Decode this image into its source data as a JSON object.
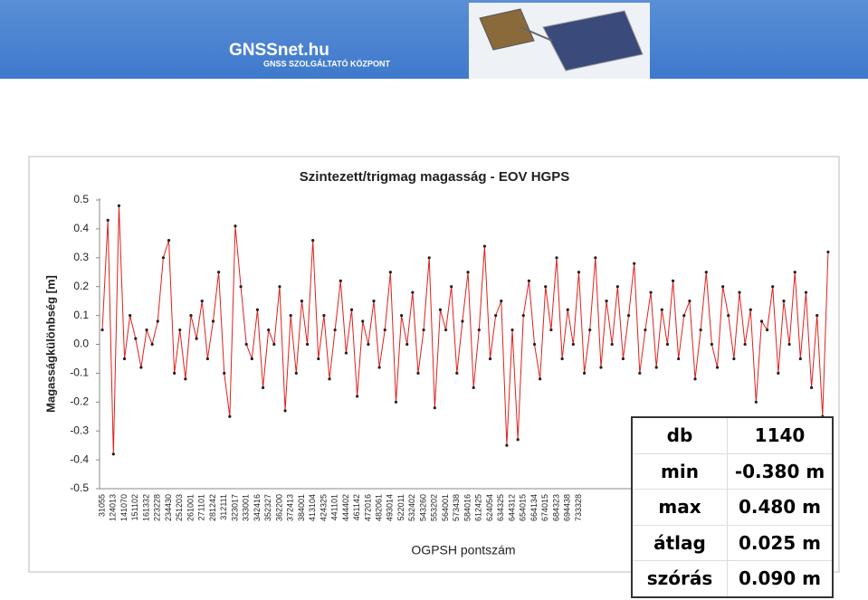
{
  "header": {
    "brand": "GNSSnet.hu",
    "subtitle": "GNSS SZOLGÁLTATÓ KÖZPONT"
  },
  "chart_data": {
    "type": "line",
    "title": "Szintezett/trigmag magasság - EOV HGPS",
    "x_label": "OGPSH pontszám",
    "y_label": "Magasságkülönbség [m]",
    "ylim": [
      -0.5,
      0.5
    ],
    "yticks": [
      -0.5,
      -0.4,
      -0.3,
      -0.2,
      -0.1,
      {
        "value": 0,
        "label": "0.0"
      },
      0.1,
      0.2,
      0.3,
      0.4,
      0.5
    ],
    "grid": false,
    "categories": [
      "31055",
      null,
      "124013",
      null,
      "141070",
      null,
      "151102",
      null,
      "161332",
      null,
      "223228",
      null,
      "234430",
      null,
      "251203",
      null,
      "261001",
      null,
      "271101",
      null,
      "281242",
      null,
      "312111",
      null,
      "323017",
      null,
      "333001",
      null,
      "342416",
      null,
      "352327",
      null,
      "362200",
      null,
      "372413",
      null,
      "384001",
      null,
      "413104",
      null,
      "424325",
      null,
      "441101",
      null,
      "444402",
      null,
      "461142",
      null,
      "472016",
      null,
      "482061",
      null,
      "493014",
      null,
      "522011",
      null,
      "532402",
      null,
      "543260",
      null,
      "553202",
      null,
      "564001",
      null,
      "573438",
      null,
      "584016",
      null,
      "612425",
      null,
      "624054",
      null,
      "634325",
      null,
      "644312",
      null,
      "654015",
      null,
      "664134",
      null,
      "674015",
      null,
      "684323",
      null,
      "694438",
      null,
      "733328",
      null,
      null,
      null,
      null,
      null,
      null,
      null,
      null,
      null,
      null,
      null,
      null,
      null,
      null,
      null,
      null,
      null,
      null,
      null,
      null,
      null,
      null,
      null,
      null,
      null,
      null,
      null,
      null,
      null,
      null,
      null,
      null,
      null,
      null,
      null,
      null,
      null,
      null,
      null,
      null,
      null,
      null,
      null,
      null,
      null
    ],
    "series": [
      {
        "name": "Magasságkülönbség",
        "color": "#e0201c",
        "marker_color": "#222222",
        "values": [
          0.05,
          0.43,
          -0.38,
          0.48,
          -0.05,
          0.1,
          0.02,
          -0.08,
          0.05,
          0.0,
          0.08,
          0.3,
          0.36,
          -0.1,
          0.05,
          -0.12,
          0.1,
          0.02,
          0.15,
          -0.05,
          0.08,
          0.25,
          -0.1,
          -0.25,
          0.41,
          0.2,
          0.0,
          -0.05,
          0.12,
          -0.15,
          0.05,
          0.0,
          0.2,
          -0.23,
          0.1,
          -0.1,
          0.15,
          0.0,
          0.36,
          -0.05,
          0.1,
          -0.12,
          0.05,
          0.22,
          -0.03,
          0.12,
          -0.18,
          0.08,
          0.0,
          0.15,
          -0.08,
          0.05,
          0.25,
          -0.2,
          0.1,
          0.0,
          0.18,
          -0.1,
          0.05,
          0.3,
          -0.22,
          0.12,
          0.05,
          0.2,
          -0.1,
          0.08,
          0.25,
          -0.15,
          0.05,
          0.34,
          -0.05,
          0.1,
          0.15,
          -0.35,
          0.05,
          -0.33,
          0.1,
          0.22,
          0.0,
          -0.12,
          0.2,
          0.05,
          0.3,
          -0.05,
          0.12,
          0.0,
          0.25,
          -0.1,
          0.05,
          0.3,
          -0.08,
          0.15,
          0.0,
          0.2,
          -0.05,
          0.1,
          0.28,
          -0.1,
          0.05,
          0.18,
          -0.08,
          0.12,
          0.0,
          0.22,
          -0.05,
          0.1,
          0.15,
          -0.12,
          0.05,
          0.25,
          0.0,
          -0.08,
          0.2,
          0.1,
          -0.05,
          0.18,
          0.0,
          0.12,
          -0.2,
          0.08,
          0.05,
          0.2,
          -0.1,
          0.15,
          0.0,
          0.25,
          -0.05,
          0.18,
          -0.15,
          0.1,
          -0.25,
          0.32
        ]
      }
    ]
  },
  "stats_table": {
    "rows": [
      [
        "db",
        "1140"
      ],
      [
        "min",
        "-0.380 m"
      ],
      [
        "max",
        "0.480 m"
      ],
      [
        "átlag",
        "0.025 m"
      ],
      [
        "szórás",
        "0.090 m"
      ]
    ]
  }
}
